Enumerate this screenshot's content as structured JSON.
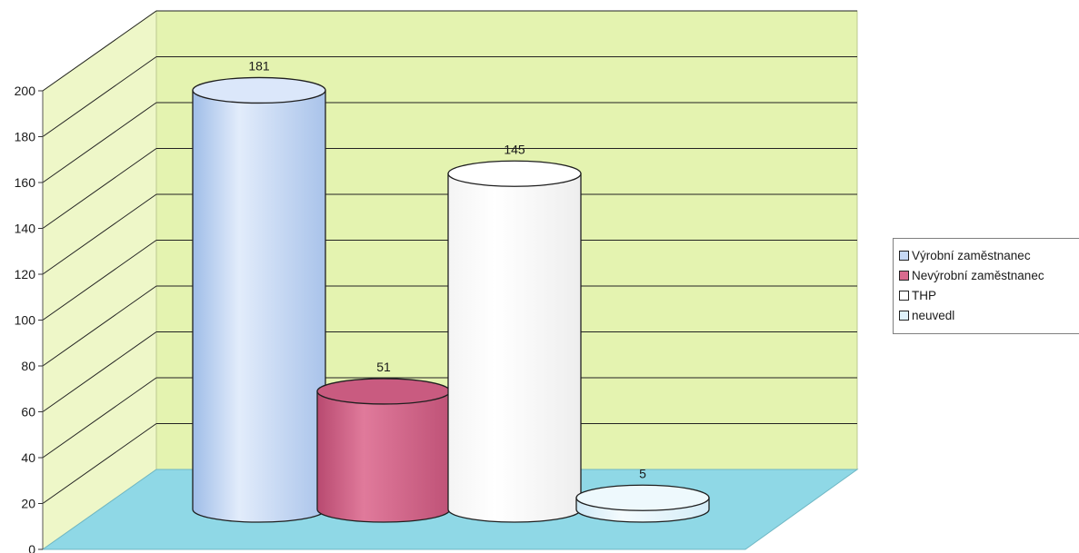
{
  "chart_data": {
    "type": "bar",
    "title": "",
    "xlabel": "",
    "ylabel": "",
    "ylim": [
      0,
      200
    ],
    "yticks": [
      0,
      20,
      40,
      60,
      80,
      100,
      120,
      140,
      160,
      180,
      200
    ],
    "grid": true,
    "legend_position": "right",
    "bar_shape": "cylinder",
    "categories": [
      "Výrobní zaměstnanec",
      "Nevýrobní zaměstnanec",
      "THP",
      "neuvedl"
    ],
    "values": [
      181,
      51,
      145,
      5
    ],
    "data_labels": [
      "181",
      "51",
      "145",
      "5"
    ]
  },
  "legend": {
    "items": [
      {
        "label": "Výrobní zaměstnanec",
        "color": "#c6d9f5"
      },
      {
        "label": "Nevýrobní zaměstnanec",
        "color": "#d96a8e"
      },
      {
        "label": "THP",
        "color": "#ffffff"
      },
      {
        "label": "neuvedl",
        "color": "#dff2fb"
      }
    ]
  },
  "colors": {
    "wall": "#e4f3b0",
    "side_wall": "#eef7c8",
    "floor": "#8fd8e6",
    "bar_blue": "#c6d9f5",
    "bar_pink": "#d96a8e",
    "bar_white": "#ffffff",
    "bar_pale": "#dff2fb"
  }
}
